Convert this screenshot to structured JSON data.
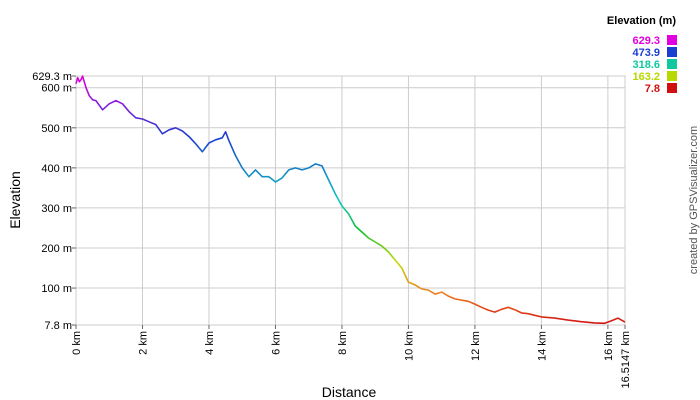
{
  "chart_data": {
    "type": "line",
    "xlabel": "Distance",
    "ylabel": "Elevation",
    "x_unit": "km",
    "y_unit": "m",
    "xlim": [
      0,
      16.5147
    ],
    "ylim": [
      7.8,
      629.3
    ],
    "x_ticks": [
      "0 km",
      "2 km",
      "4 km",
      "6 km",
      "8 km",
      "10 km",
      "12 km",
      "14 km",
      "16 km",
      "16.5147 km"
    ],
    "x_tick_values": [
      0,
      2,
      4,
      6,
      8,
      10,
      12,
      14,
      16,
      16.5147
    ],
    "y_ticks": [
      "7.8 m",
      "100 m",
      "200 m",
      "300 m",
      "400 m",
      "500 m",
      "600 m",
      "629.3 m"
    ],
    "y_tick_values": [
      7.8,
      100,
      200,
      300,
      400,
      500,
      600,
      629.3
    ],
    "grid": true,
    "legend": {
      "title": "Elevation (m)",
      "placement": "top-right",
      "entries": [
        {
          "label": "629.3",
          "color": "#e000e0"
        },
        {
          "label": "473.9",
          "color": "#1a3fd0"
        },
        {
          "label": "318.6",
          "color": "#10c8a0"
        },
        {
          "label": "163.2",
          "color": "#b8d800"
        },
        {
          "label": "7.8",
          "color": "#d01010"
        }
      ]
    },
    "series": [
      {
        "x": [
          0,
          0.05,
          0.1,
          0.15,
          0.2,
          0.3,
          0.4,
          0.5,
          0.6,
          0.8,
          1.0,
          1.2,
          1.4,
          1.6,
          1.8,
          2.0,
          2.2,
          2.4,
          2.6,
          2.8,
          3.0,
          3.2,
          3.4,
          3.6,
          3.8,
          4.0,
          4.2,
          4.4,
          4.5,
          4.6,
          4.8,
          5.0,
          5.2,
          5.4,
          5.6,
          5.8,
          6.0,
          6.2,
          6.4,
          6.6,
          6.8,
          7.0,
          7.2,
          7.4,
          7.6,
          7.8,
          8.0,
          8.2,
          8.4,
          8.6,
          8.8,
          9.0,
          9.2,
          9.4,
          9.6,
          9.8,
          10.0,
          10.2,
          10.4,
          10.6,
          10.8,
          11.0,
          11.2,
          11.4,
          11.6,
          11.8,
          12.0,
          12.2,
          12.4,
          12.6,
          12.8,
          13.0,
          13.2,
          13.4,
          13.6,
          13.8,
          14.0,
          14.4,
          14.8,
          15.2,
          15.6,
          15.9,
          16.1,
          16.3,
          16.5147
        ],
        "y": [
          610,
          625,
          615,
          620,
          629,
          600,
          580,
          570,
          568,
          545,
          560,
          568,
          560,
          540,
          525,
          522,
          515,
          508,
          485,
          495,
          500,
          492,
          478,
          460,
          440,
          462,
          470,
          475,
          490,
          468,
          430,
          400,
          378,
          395,
          378,
          378,
          365,
          375,
          395,
          400,
          395,
          400,
          410,
          405,
          370,
          335,
          305,
          285,
          255,
          240,
          225,
          215,
          205,
          190,
          170,
          150,
          115,
          108,
          98,
          95,
          85,
          90,
          80,
          73,
          70,
          67,
          60,
          52,
          45,
          40,
          47,
          52,
          46,
          38,
          36,
          32,
          28,
          25,
          20,
          16,
          13,
          12,
          18,
          25,
          15
        ]
      }
    ]
  },
  "credit": "created by GPSVisualizer.com"
}
